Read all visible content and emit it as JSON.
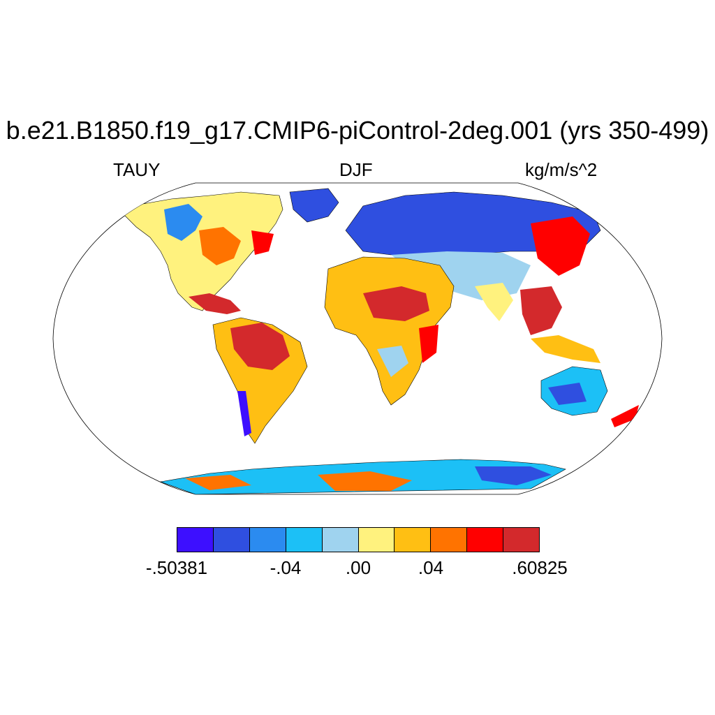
{
  "title": "b.e21.B1850.f19_g17.CMIP6-piControl-2deg.001 (yrs 350-499)",
  "left_label": "TAUY",
  "center_label": "DJF",
  "right_label": "kg/m/s^2",
  "colorbar": {
    "colors": [
      "#3d0fff",
      "#2f4fe0",
      "#2b8bf0",
      "#1cc0f6",
      "#9fd3ef",
      "#fff27e",
      "#ffbf13",
      "#ff7300",
      "#ff0000",
      "#d3292c"
    ],
    "labels": [
      {
        "text": "-.50381",
        "boundary": 0
      },
      {
        "text": "-.04",
        "boundary": 3
      },
      {
        "text": ".00",
        "boundary": 5
      },
      {
        "text": ".04",
        "boundary": 7
      },
      {
        "text": ".60825",
        "boundary": 10
      }
    ]
  },
  "map": {
    "projection": "robinson",
    "ocean_color": "#ffffff",
    "outline_color": "#000000"
  }
}
